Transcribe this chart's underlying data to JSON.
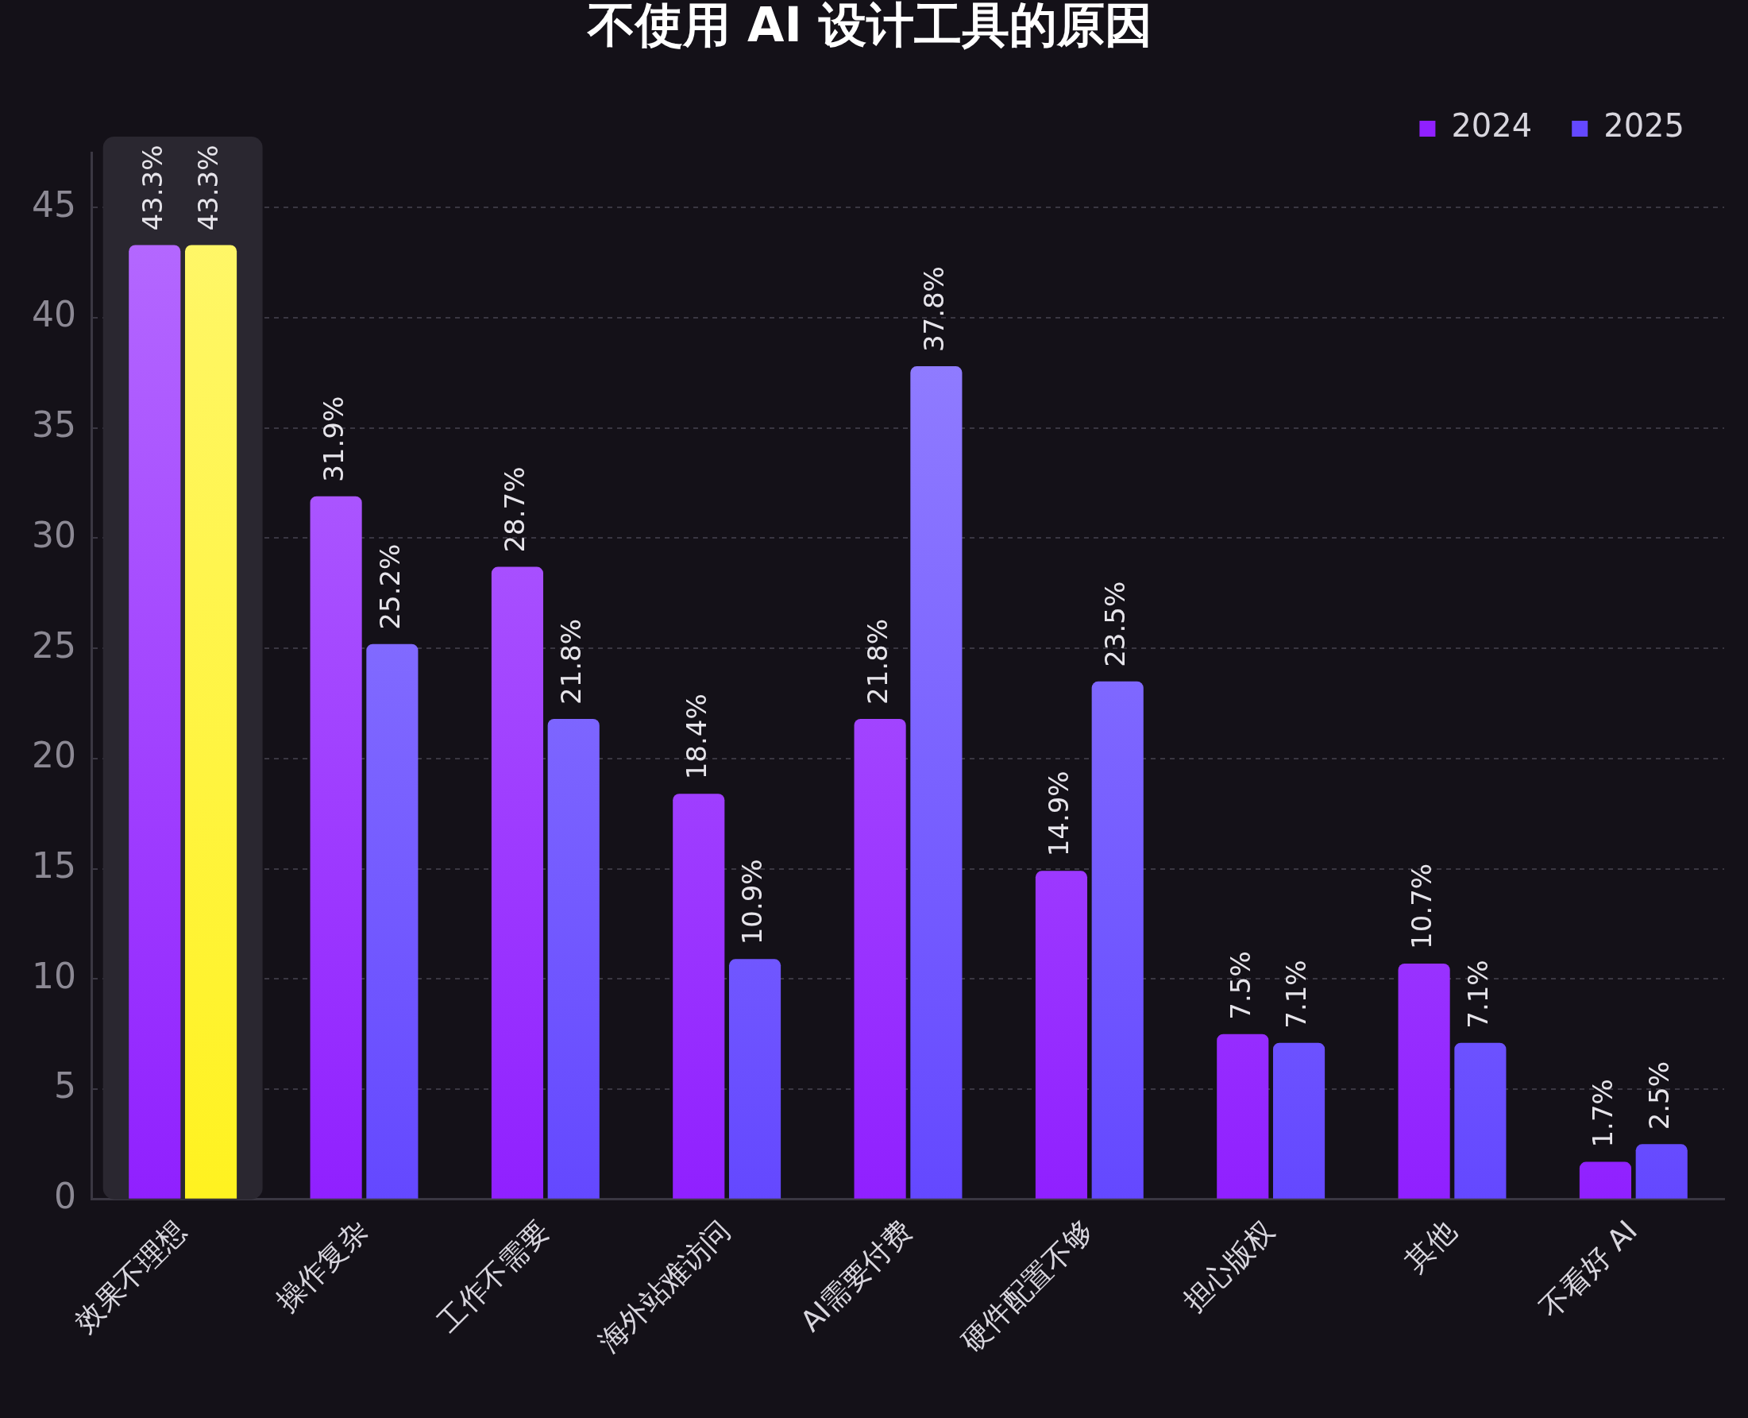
{
  "chart_data": {
    "type": "bar",
    "title": "不使用 AI 设计工具的原因",
    "categories": [
      "效果不理想",
      "操作复杂",
      "工作不需要",
      "海外站难访问",
      "AI需要付费",
      "硬件配置不够",
      "担心版权",
      "其他",
      "不看好 AI"
    ],
    "series": [
      {
        "name": "2024",
        "color": "#9020ff",
        "values": [
          43.3,
          31.9,
          28.7,
          18.4,
          21.8,
          14.9,
          7.5,
          10.7,
          1.7
        ],
        "value_labels": [
          "43.3%",
          "31.9%",
          "28.7%",
          "18.4%",
          "21.8%",
          "14.9%",
          "7.5%",
          "10.7%",
          "1.7%"
        ]
      },
      {
        "name": "2025",
        "color": "#6448ff",
        "colors": [
          "#fff220",
          "#6448ff",
          "#6448ff",
          "#6448ff",
          "#6448ff",
          "#6448ff",
          "#6448ff",
          "#6448ff",
          "#6448ff"
        ],
        "values": [
          43.3,
          25.2,
          21.8,
          10.9,
          37.8,
          23.5,
          7.1,
          7.1,
          2.5
        ],
        "value_labels": [
          "43.3%",
          "25.2%",
          "21.8%",
          "10.9%",
          "37.8%",
          "23.5%",
          "7.1%",
          "7.1%",
          "2.5%"
        ]
      }
    ],
    "ylim": [
      0,
      47.5
    ],
    "yticks": [
      0,
      5,
      10,
      15,
      20,
      25,
      30,
      35,
      40,
      45
    ],
    "grid": "y",
    "legend": "top right",
    "bands": [
      {
        "axis": "x",
        "from": "效果不理想",
        "to": "效果不理想",
        "color": "#2a2730"
      }
    ]
  }
}
